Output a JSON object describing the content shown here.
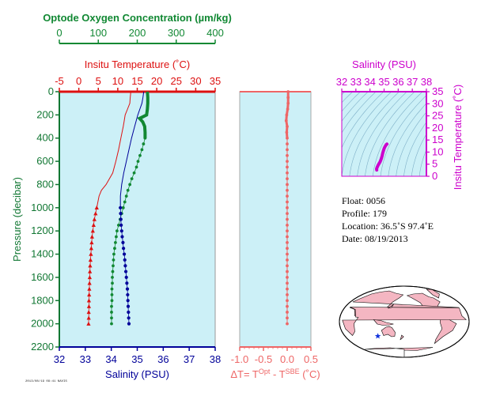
{
  "colors": {
    "plot_bg": "#ccf0f7",
    "oxygen": "#118833",
    "temperature": "#dd1111",
    "salinity_axis": "#000099",
    "salinity_ts": "#cc00cc",
    "delta": "#ee6666",
    "pressure": "#117733",
    "frame_grey": "#aaaaaa"
  },
  "chart_data": [
    {
      "id": "profile",
      "type": "line",
      "ylabel": "Pressure (decibar)",
      "yticks": [
        "0",
        "200",
        "400",
        "600",
        "800",
        "1000",
        "1200",
        "1400",
        "1600",
        "1800",
        "2000",
        "2200"
      ],
      "ylim": [
        2200,
        0
      ],
      "oxygen_axis": {
        "label": "Optode Oxygen Concentration (µm/kg)",
        "ticks": [
          "0",
          "100",
          "200",
          "300",
          "400"
        ],
        "range": [
          0,
          400
        ]
      },
      "temperature_axis": {
        "label": "Insitu Temperature (˚C)",
        "ticks": [
          "-5",
          "0",
          "5",
          "10",
          "15",
          "20",
          "25",
          "30",
          "35"
        ],
        "range": [
          -5,
          35
        ]
      },
      "salinity_axis": {
        "label": "Salinity (PSU)",
        "ticks": [
          "32",
          "33",
          "34",
          "35",
          "36",
          "37",
          "38"
        ],
        "range": [
          32,
          38
        ]
      },
      "series": [
        {
          "key": "temperature_line",
          "pressure": [
            0,
            20,
            50,
            100,
            150,
            200,
            260,
            300,
            400,
            500,
            600,
            700,
            800,
            850,
            900,
            1000
          ],
          "values": [
            13.3,
            13.3,
            13.2,
            13.1,
            12.5,
            11.9,
            11.6,
            11.4,
            10.8,
            10.2,
            9.5,
            8.7,
            7.0,
            5.8,
            5.2,
            4.6
          ]
        },
        {
          "key": "temperature_points",
          "pressure": [
            1000,
            1050,
            1100,
            1150,
            1200,
            1250,
            1300,
            1350,
            1400,
            1450,
            1500,
            1550,
            1600,
            1650,
            1700,
            1750,
            1800,
            1850,
            1900,
            1950,
            2000
          ],
          "values": [
            4.6,
            4.3,
            4.0,
            3.8,
            3.6,
            3.4,
            3.3,
            3.2,
            3.1,
            3.0,
            2.9,
            2.85,
            2.8,
            2.75,
            2.7,
            2.65,
            2.6,
            2.6,
            2.55,
            2.55,
            2.5
          ]
        },
        {
          "key": "salinity_line",
          "pressure": [
            0,
            50,
            100,
            150,
            200,
            300,
            400,
            500,
            600,
            700,
            800,
            900,
            1000
          ],
          "values": [
            35.25,
            35.22,
            35.18,
            35.1,
            35.02,
            34.9,
            34.78,
            34.68,
            34.58,
            34.48,
            34.4,
            34.35,
            34.35
          ]
        },
        {
          "key": "salinity_points",
          "pressure": [
            1000,
            1050,
            1100,
            1150,
            1200,
            1250,
            1300,
            1350,
            1400,
            1450,
            1500,
            1550,
            1600,
            1650,
            1700,
            1750,
            1800,
            1850,
            1900,
            1950,
            2000
          ],
          "values": [
            34.35,
            34.36,
            34.37,
            34.38,
            34.4,
            34.42,
            34.45,
            34.47,
            34.5,
            34.52,
            34.54,
            34.56,
            34.58,
            34.6,
            34.62,
            34.63,
            34.64,
            34.65,
            34.66,
            34.67,
            34.68
          ]
        },
        {
          "key": "oxygen_line",
          "pressure": [
            0,
            50,
            100,
            150,
            200,
            230,
            260,
            300,
            350,
            400
          ],
          "values": [
            226,
            227,
            227,
            226,
            224,
            206,
            214,
            219,
            220,
            220
          ]
        },
        {
          "key": "oxygen_points",
          "pressure": [
            400,
            450,
            500,
            550,
            600,
            650,
            700,
            750,
            800,
            850,
            900,
            950,
            1000,
            1050,
            1100,
            1150,
            1200,
            1250,
            1300,
            1350,
            1400,
            1450,
            1500,
            1550,
            1600,
            1650,
            1700,
            1750,
            1800,
            1850,
            1900,
            1950,
            2000
          ],
          "values": [
            220,
            216,
            212,
            207,
            202,
            198,
            192,
            186,
            181,
            176,
            172,
            168,
            164,
            160,
            156,
            152,
            148,
            146,
            144,
            142,
            140,
            139,
            138,
            137,
            136,
            136,
            135,
            135,
            135,
            134,
            134,
            134,
            134
          ]
        }
      ]
    },
    {
      "id": "delta",
      "type": "scatter",
      "xlabel": "ΔT= T",
      "xlabel_sup1": "Opt",
      "xlabel_mid": " - T",
      "xlabel_sup2": "SBE",
      "xlabel_unit": " (˚C)",
      "xticks": [
        "-1.0",
        "-0.5",
        "0.0",
        "0.5"
      ],
      "xlim": [
        -1.0,
        0.5
      ],
      "ylim": [
        2200,
        0
      ],
      "pressure": [
        0,
        50,
        100,
        150,
        200,
        250,
        300,
        350,
        400,
        450,
        500,
        550,
        600,
        650,
        700,
        750,
        800,
        850,
        900,
        950,
        1000,
        1050,
        1100,
        1150,
        1200,
        1250,
        1300,
        1350,
        1400,
        1450,
        1500,
        1550,
        1600,
        1650,
        1700,
        1750,
        1800,
        1850,
        1900,
        1950,
        2000
      ],
      "values": [
        0.02,
        0.02,
        0.02,
        0.01,
        -0.01,
        -0.02,
        0.0,
        -0.01,
        0.0,
        0.0,
        0.0,
        0.0,
        0.0,
        0.0,
        0.0,
        0.0,
        0.0,
        0.0,
        0.0,
        0.0,
        0.0,
        0.0,
        0.0,
        0.0,
        0.0,
        0.0,
        0.0,
        0.0,
        0.0,
        0.0,
        0.0,
        0.0,
        0.0,
        0.0,
        0.0,
        0.0,
        0.0,
        0.0,
        0.0,
        0.0,
        0.0
      ]
    },
    {
      "id": "ts",
      "type": "line",
      "xlabel": "Salinity (PSU)",
      "xticks": [
        "32",
        "33",
        "34",
        "35",
        "36",
        "37",
        "38"
      ],
      "xlim": [
        32,
        38
      ],
      "ylabel": "Insitu Temperature (˚C)",
      "yticks": [
        "0",
        "5",
        "10",
        "15",
        "20",
        "25",
        "30",
        "35"
      ],
      "ylim": [
        0,
        35
      ],
      "salinity": [
        34.48,
        34.47,
        34.5,
        34.55,
        34.62,
        34.72,
        34.8,
        34.86,
        34.9,
        34.95,
        35.0,
        35.05,
        35.1,
        35.15,
        35.2
      ],
      "temperature": [
        2.6,
        3.0,
        3.6,
        4.3,
        5.0,
        6.0,
        7.2,
        8.4,
        9.5,
        10.5,
        11.4,
        12.1,
        12.6,
        13.1,
        13.3
      ]
    }
  ],
  "info": {
    "float_line": "Float:  0056",
    "profile_line": "Profile:  179",
    "location_line": "Location:  36.5˚S  97.4˚E",
    "date_line": "Date:  08/19/2013"
  },
  "map": {
    "marker_icon": "star-icon",
    "marker_lon": 97.4,
    "marker_lat": -36.5
  },
  "footer": {
    "stamp": "2013/08/19 09:41 NAVIS"
  }
}
